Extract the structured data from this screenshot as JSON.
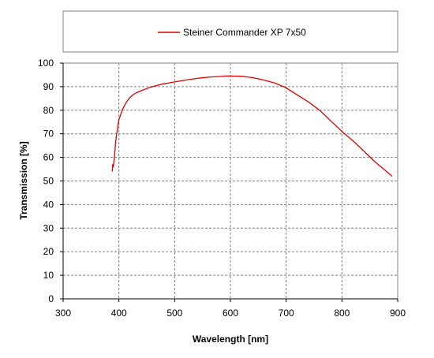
{
  "chart_data": {
    "type": "line",
    "title": "",
    "xlabel": "Wavelength [nm]",
    "ylabel": "Transmission [%]",
    "xlim": [
      300,
      900
    ],
    "ylim": [
      0,
      100
    ],
    "x_ticks": [
      300,
      400,
      500,
      600,
      700,
      800,
      900
    ],
    "y_ticks": [
      0,
      10,
      20,
      30,
      40,
      50,
      60,
      70,
      80,
      90,
      100
    ],
    "grid": true,
    "grid_style": "dashed",
    "legend_position": "top",
    "colors": {
      "series": "#e00000",
      "grid": "#808080",
      "axis": "#000000"
    },
    "series": [
      {
        "name": "Steiner Commander XP 7x50",
        "x": [
          388,
          389,
          390,
          391,
          392,
          393,
          394,
          395,
          396,
          398,
          400,
          403,
          406,
          410,
          415,
          420,
          425,
          430,
          435,
          440,
          450,
          460,
          470,
          480,
          490,
          500,
          520,
          540,
          560,
          580,
          590,
          600,
          620,
          640,
          660,
          680,
          700,
          720,
          740,
          760,
          780,
          800,
          820,
          840,
          860,
          880,
          890
        ],
        "y": [
          54,
          57,
          56,
          58,
          60,
          63,
          66,
          68,
          70,
          73,
          76,
          78,
          80,
          82,
          84,
          85.5,
          86.5,
          87.3,
          87.8,
          88.3,
          89.2,
          90,
          90.6,
          91.2,
          91.6,
          92,
          92.8,
          93.5,
          94,
          94.3,
          94.5,
          94.5,
          94.4,
          93.8,
          92.8,
          91.5,
          89.5,
          86.5,
          83.5,
          80,
          75.5,
          71,
          67,
          62.5,
          58,
          54,
          52
        ]
      }
    ]
  }
}
